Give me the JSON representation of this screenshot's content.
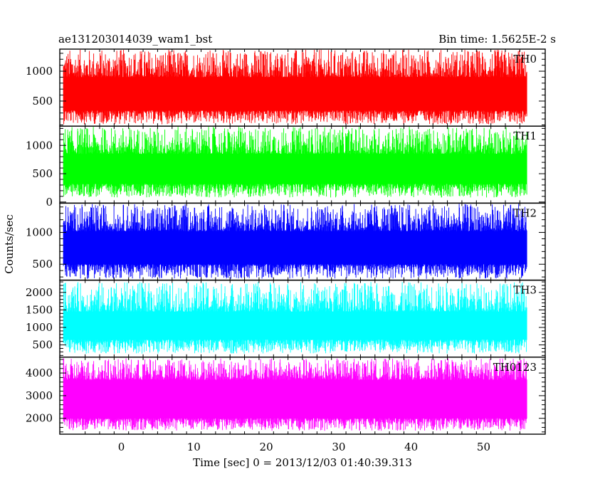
{
  "chart_data": {
    "type": "line",
    "title_left": "ae131203014039_wam1_bst",
    "title_right": "Bin time: 1.5625E-2 s",
    "xlabel": "Time [sec] 0 = 2013/12/03 01:40:39.313",
    "ylabel": "Counts/sec",
    "xlim": [
      -8.5,
      58.5
    ],
    "x_range": [
      -8,
      56
    ],
    "x_ticks": [
      "0",
      "10",
      "20",
      "30",
      "40",
      "50"
    ],
    "grid": false,
    "legend": "none",
    "panels": [
      {
        "name": "TH0",
        "color": "#ff0000",
        "ylim": [
          80,
          1370
        ],
        "y_ticks": [
          "500",
          "1000"
        ],
        "signal": {
          "low": [
            110,
            340
          ],
          "high": [
            900,
            1370
          ]
        }
      },
      {
        "name": "TH1",
        "color": "#00ff00",
        "ylim": [
          -20,
          1340
        ],
        "y_ticks": [
          "0",
          "500",
          "1000"
        ],
        "signal": {
          "low": [
            80,
            320
          ],
          "high": [
            850,
            1330
          ]
        }
      },
      {
        "name": "TH2",
        "color": "#0000ff",
        "ylim": [
          250,
          1460
        ],
        "y_ticks": [
          "500",
          "1000"
        ],
        "signal": {
          "low": [
            270,
            500
          ],
          "high": [
            1020,
            1450
          ]
        }
      },
      {
        "name": "TH3",
        "color": "#00ffff",
        "ylim": [
          150,
          2350
        ],
        "y_ticks": [
          "500",
          "1000",
          "1500",
          "2000"
        ],
        "signal": {
          "low": [
            250,
            650
          ],
          "high": [
            1450,
            2300
          ]
        }
      },
      {
        "name": "TH0123",
        "color": "#ff00ff",
        "ylim": [
          1300,
          4700
        ],
        "y_ticks": [
          "2000",
          "3000",
          "4000"
        ],
        "signal": {
          "low": [
            1450,
            2000
          ],
          "high": [
            3700,
            4650
          ]
        }
      }
    ]
  }
}
